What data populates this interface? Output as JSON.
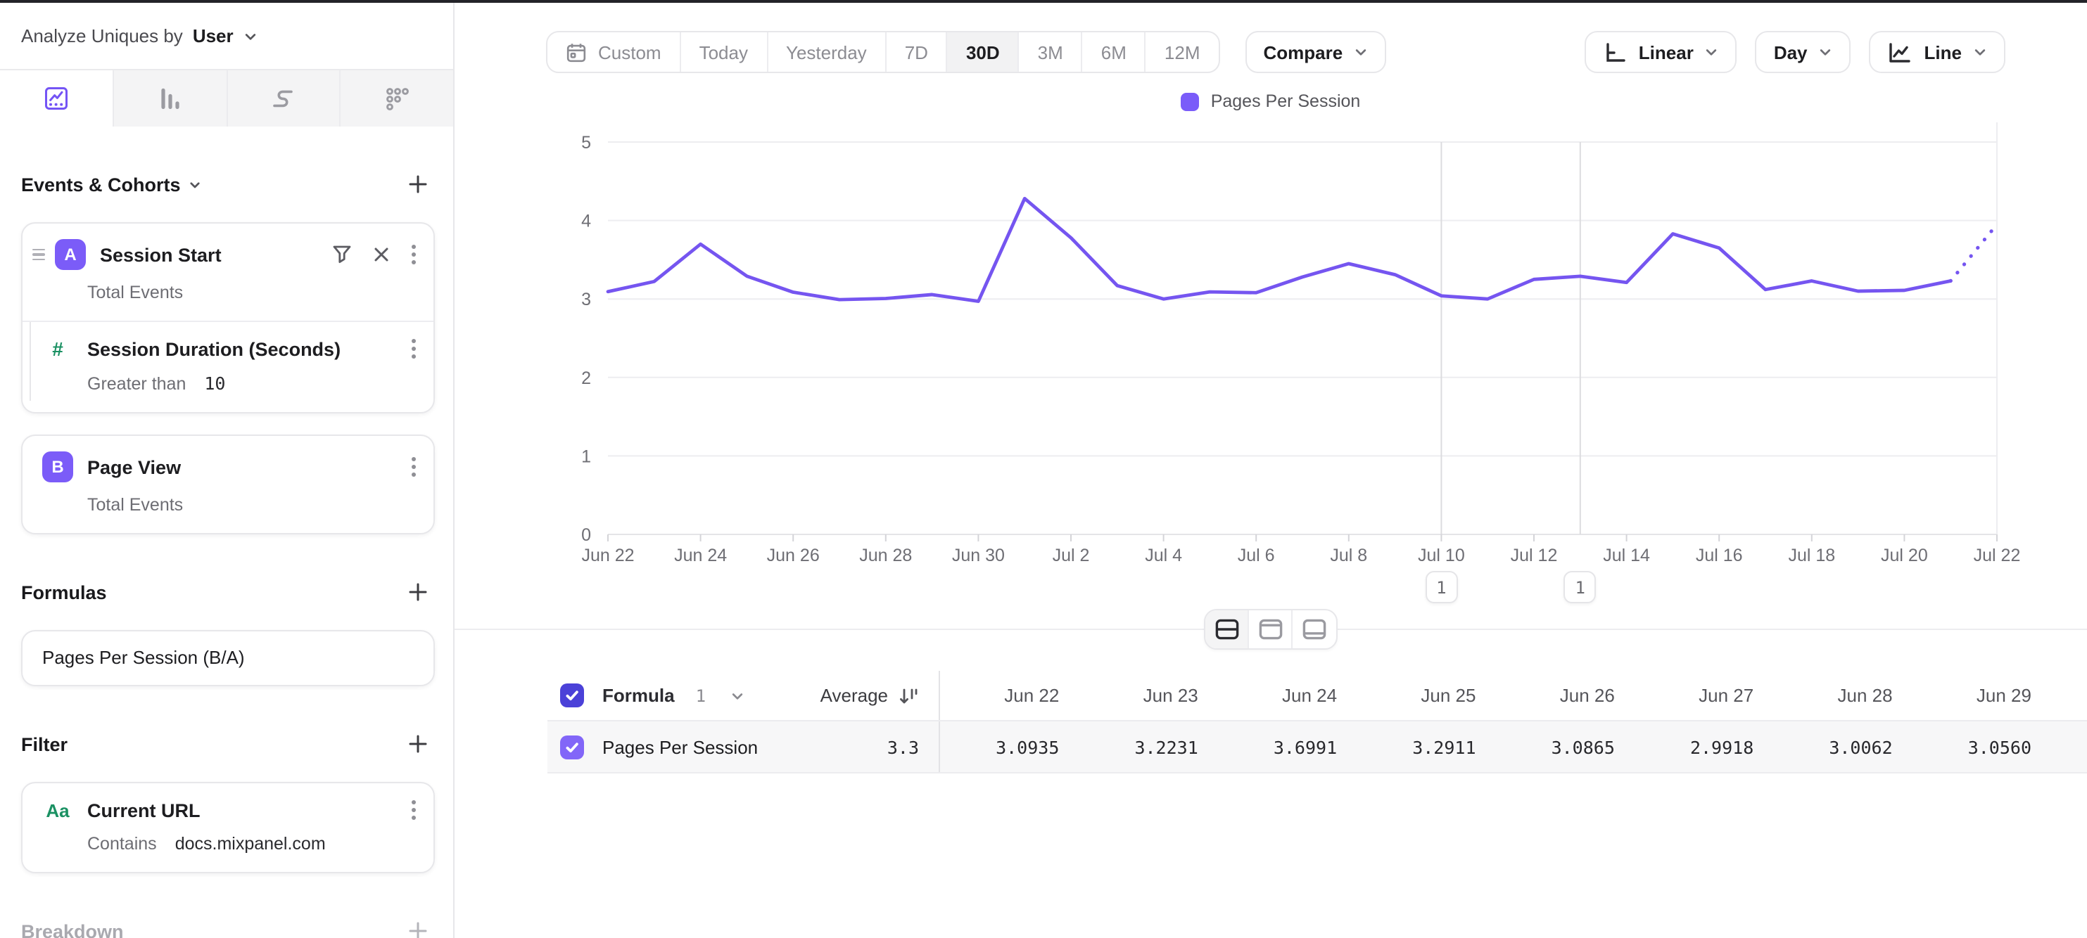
{
  "sidebar": {
    "analyze_label": "Analyze Uniques by",
    "analyze_value": "User",
    "events": {
      "title": "Events & Cohorts",
      "item_a": {
        "badge": "A",
        "title": "Session Start",
        "measure": "Total Events"
      },
      "duration": {
        "icon": "#",
        "title": "Session Duration (Seconds)",
        "operator": "Greater than",
        "value": "10"
      },
      "item_b": {
        "badge": "B",
        "title": "Page View",
        "measure": "Total Events"
      }
    },
    "formulas": {
      "title": "Formulas",
      "items": [
        "Pages Per Session (B/A)"
      ]
    },
    "filter": {
      "title": "Filter",
      "item": {
        "icon": "Aa",
        "title": "Current URL",
        "operator": "Contains",
        "value": "docs.mixpanel.com"
      }
    },
    "breakdown": {
      "title": "Breakdown"
    }
  },
  "toolbar": {
    "ranges": [
      "Custom",
      "Today",
      "Yesterday",
      "7D",
      "30D",
      "3M",
      "6M",
      "12M"
    ],
    "active_range": "30D",
    "compare": "Compare",
    "scale": "Linear",
    "interval": "Day",
    "chart_type": "Line"
  },
  "chart_data": {
    "type": "line",
    "title": "",
    "xlabel": "",
    "ylabel": "",
    "ylim": [
      0,
      5
    ],
    "yticks": [
      5,
      4,
      3,
      2,
      1,
      0
    ],
    "grid": "horizontal",
    "legend_position": "top-center",
    "x": [
      "Jun 22",
      "Jun 23",
      "Jun 24",
      "Jun 25",
      "Jun 26",
      "Jun 27",
      "Jun 28",
      "Jun 29",
      "Jun 30",
      "Jul 1",
      "Jul 2",
      "Jul 3",
      "Jul 4",
      "Jul 5",
      "Jul 6",
      "Jul 7",
      "Jul 8",
      "Jul 9",
      "Jul 10",
      "Jul 11",
      "Jul 12",
      "Jul 13",
      "Jul 14",
      "Jul 15",
      "Jul 16",
      "Jul 17",
      "Jul 18",
      "Jul 19",
      "Jul 20",
      "Jul 21",
      "Jul 22"
    ],
    "x_tick_every": 2,
    "series": [
      {
        "name": "Pages Per Session",
        "color": "#7555f0",
        "values": [
          3.0935,
          3.2231,
          3.6991,
          3.2911,
          3.0865,
          2.9918,
          3.0062,
          3.056,
          2.97,
          4.28,
          3.78,
          3.17,
          3.0,
          3.09,
          3.08,
          3.28,
          3.45,
          3.31,
          3.04,
          3.0,
          3.25,
          3.29,
          3.21,
          3.83,
          3.65,
          3.12,
          3.23,
          3.1,
          3.11,
          3.23,
          3.95
        ],
        "dashed_tail_points": 1
      }
    ],
    "annotations": [
      {
        "label": "1",
        "date": "Jul 10"
      },
      {
        "label": "1",
        "date": "Jul 13"
      }
    ]
  },
  "table": {
    "series_toggle": {
      "label": "Formula",
      "index": "1"
    },
    "average_label": "Average",
    "columns": [
      "Jun 22",
      "Jun 23",
      "Jun 24",
      "Jun 25",
      "Jun 26",
      "Jun 27",
      "Jun 28",
      "Jun 29"
    ],
    "rows": [
      {
        "name": "Pages Per Session",
        "average": "3.3",
        "values": [
          "3.0935",
          "3.2231",
          "3.6991",
          "3.2911",
          "3.0865",
          "2.9918",
          "3.0062",
          "3.0560"
        ]
      }
    ]
  },
  "colors": {
    "brand_purple": "#7a5cf9",
    "line_purple": "#7555f0",
    "header_checkbox": "#4b41d8",
    "row_checkbox": "#8266f8",
    "green_property": "#1b9163",
    "grid": "#ededf0",
    "annotation_line": "#dcdcdf"
  },
  "icons": {
    "tabs": [
      "insights-line-icon",
      "bar-chart-icon",
      "flows-icon",
      "retention-dots-icon"
    ],
    "misc": [
      "calendar-icon",
      "chevron-down-icon",
      "filter-funnel-icon",
      "close-icon",
      "kebab-menu-icon",
      "drag-handle-icon",
      "plus-icon",
      "linear-scale-icon",
      "line-chart-icon",
      "sort-descending-icon",
      "split-horizontal-icon",
      "panel-top-icon",
      "panel-bottom-icon",
      "checkbox-check-icon"
    ]
  }
}
